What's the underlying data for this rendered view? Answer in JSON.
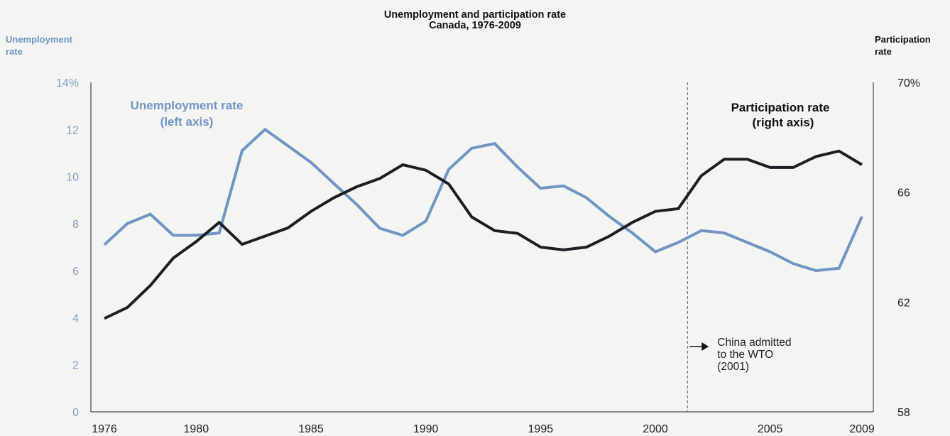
{
  "chart_data": {
    "type": "line",
    "title": "Unemployment and participation rate",
    "subtitle": "Canada, 1976-2009",
    "left_axis": {
      "label_line1": "Unemployment",
      "label_line2": "rate",
      "ticks": [
        "0",
        "2",
        "4",
        "6",
        "8",
        "10",
        "12",
        "14%"
      ],
      "range": [
        0,
        14
      ]
    },
    "right_axis": {
      "label_line1": "Participation",
      "label_line2": "rate",
      "ticks": [
        "58",
        "62",
        "66",
        "70%"
      ],
      "range": [
        58,
        70
      ]
    },
    "x_ticks": [
      "1976",
      "1980",
      "1985",
      "1990",
      "1995",
      "2000",
      "2005",
      "2009"
    ],
    "x": [
      1976,
      1977,
      1978,
      1979,
      1980,
      1981,
      1982,
      1983,
      1984,
      1985,
      1986,
      1987,
      1988,
      1989,
      1990,
      1991,
      1992,
      1993,
      1994,
      1995,
      1996,
      1997,
      1998,
      1999,
      2000,
      2001,
      2002,
      2003,
      2004,
      2005,
      2006,
      2007,
      2008,
      2009
    ],
    "series": [
      {
        "name": "Unemployment rate",
        "axis": "left",
        "color": "#6e95c4",
        "label_line1": "Unemployment rate",
        "label_line2": "(left axis)",
        "values": [
          7.1,
          8.0,
          8.4,
          7.5,
          7.5,
          7.6,
          11.1,
          12.0,
          11.3,
          10.6,
          9.7,
          8.8,
          7.8,
          7.5,
          8.1,
          10.3,
          11.2,
          11.4,
          10.4,
          9.5,
          9.6,
          9.1,
          8.3,
          7.6,
          6.8,
          7.2,
          7.7,
          7.6,
          7.2,
          6.8,
          6.3,
          6.0,
          6.1,
          8.3
        ]
      },
      {
        "name": "Participation rate",
        "axis": "right",
        "color": "#1b1f24",
        "label_line1": "Participation rate",
        "label_line2": "(right axis)",
        "values": [
          61.4,
          61.8,
          62.6,
          63.6,
          64.2,
          64.9,
          64.1,
          64.4,
          64.7,
          65.3,
          65.8,
          66.2,
          66.5,
          67.0,
          66.8,
          66.3,
          65.1,
          64.6,
          64.5,
          64.0,
          63.9,
          64.0,
          64.4,
          64.9,
          65.3,
          65.4,
          66.6,
          67.2,
          67.2,
          66.9,
          66.9,
          67.3,
          67.5,
          67.0
        ]
      }
    ],
    "annotation": {
      "line1": "China admitted",
      "line2": "to the WTO",
      "line3": "(2001)",
      "x": 2001.4
    }
  }
}
